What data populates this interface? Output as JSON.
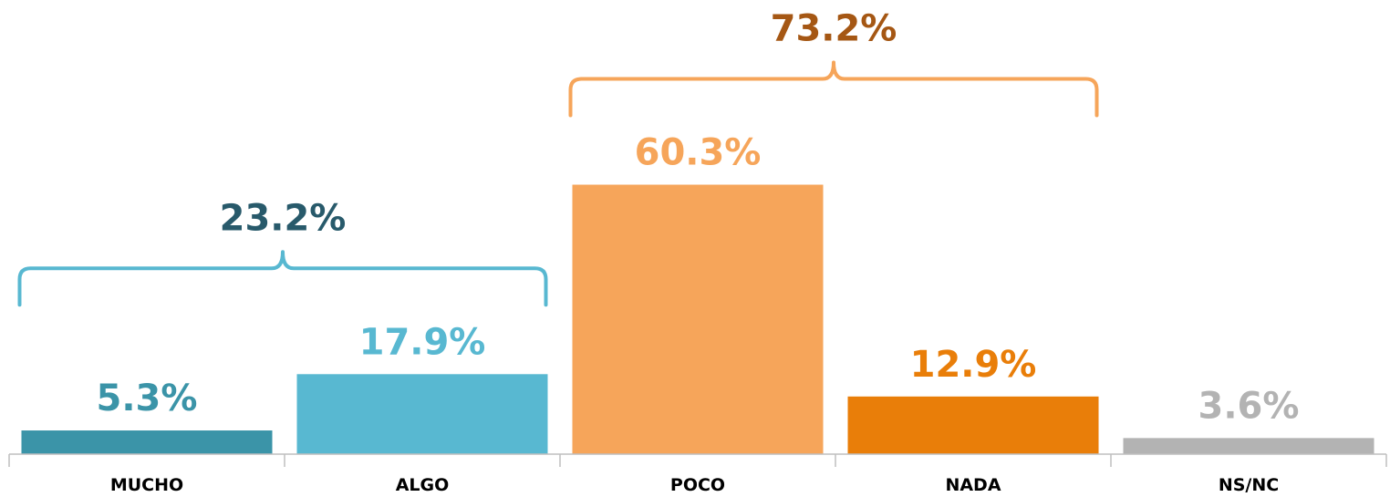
{
  "chart_data": {
    "type": "bar",
    "categories": [
      "MUCHO",
      "ALGO",
      "POCO",
      "NADA",
      "NS/NC"
    ],
    "values": [
      5.3,
      17.9,
      60.3,
      12.9,
      3.6
    ],
    "value_labels": [
      "5.3%",
      "17.9%",
      "60.3%",
      "12.9%",
      "3.6%"
    ],
    "colors": [
      "#3b94a8",
      "#58b8d1",
      "#f6a55a",
      "#e97e09",
      "#b3b3b3"
    ],
    "label_colors": [
      "#3b94a8",
      "#58b8d1",
      "#f6a55a",
      "#e97e09",
      "#b3b3b3"
    ],
    "groups": [
      {
        "label": "23.2%",
        "value": 23.2,
        "from": 0,
        "to": 1,
        "color": "#58b8d1",
        "label_color": "#285a6b"
      },
      {
        "label": "73.2%",
        "value": 73.2,
        "from": 2,
        "to": 3,
        "color": "#f6a55a",
        "label_color": "#a55714"
      }
    ],
    "axis_color": "#bfbfbf",
    "ylim": [
      0,
      100
    ],
    "grid": false
  }
}
